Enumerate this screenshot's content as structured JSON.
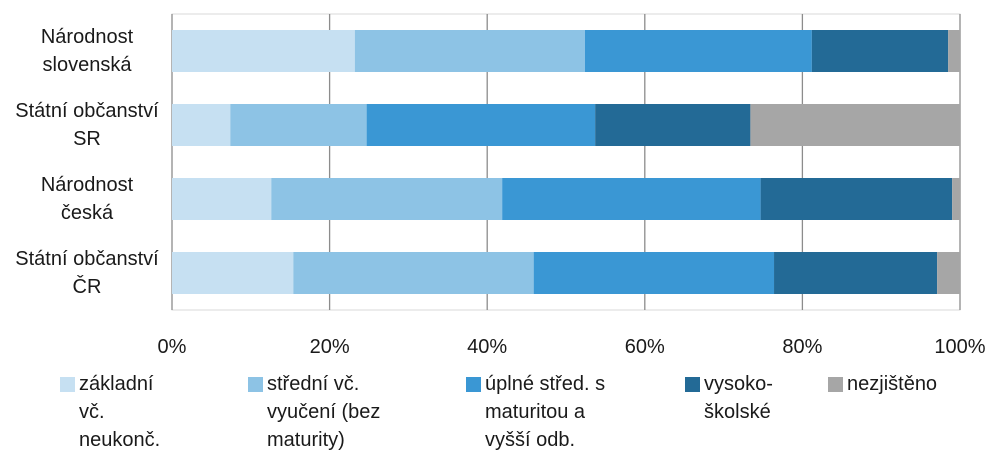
{
  "chart_data": {
    "type": "stacked-bar-horizontal",
    "categories": [
      "Národnost slovenská",
      "Státní občanství SR",
      "Národnost česká",
      "Státní občanství ČR"
    ],
    "series": [
      {
        "name": "základní vč. neukonč.",
        "color": "#c6e0f2",
        "values": [
          23.2,
          7.4,
          12.6,
          15.4
        ]
      },
      {
        "name": "střední vč. vyučení (bez maturity)",
        "color": "#8dc3e5",
        "values": [
          29.2,
          17.3,
          29.3,
          30.5
        ]
      },
      {
        "name": "úplné střed. s maturitou a vyšší odb.",
        "color": "#3a97d4",
        "values": [
          28.8,
          29.0,
          32.8,
          30.5
        ]
      },
      {
        "name": "vysoko-školské",
        "color": "#236a96",
        "values": [
          17.3,
          19.7,
          24.3,
          20.7
        ]
      },
      {
        "name": "nezjištěno",
        "color": "#a6a6a6",
        "values": [
          1.5,
          26.6,
          1.0,
          2.9
        ]
      }
    ],
    "xlim": [
      0,
      100
    ],
    "xticks": [
      {
        "value": 0,
        "label": "0%"
      },
      {
        "value": 20,
        "label": "20%"
      },
      {
        "value": 40,
        "label": "40%"
      },
      {
        "value": 60,
        "label": "60%"
      },
      {
        "value": 80,
        "label": "80%"
      },
      {
        "value": 100,
        "label": "100%"
      }
    ],
    "grid": true,
    "legend": "bottom"
  }
}
